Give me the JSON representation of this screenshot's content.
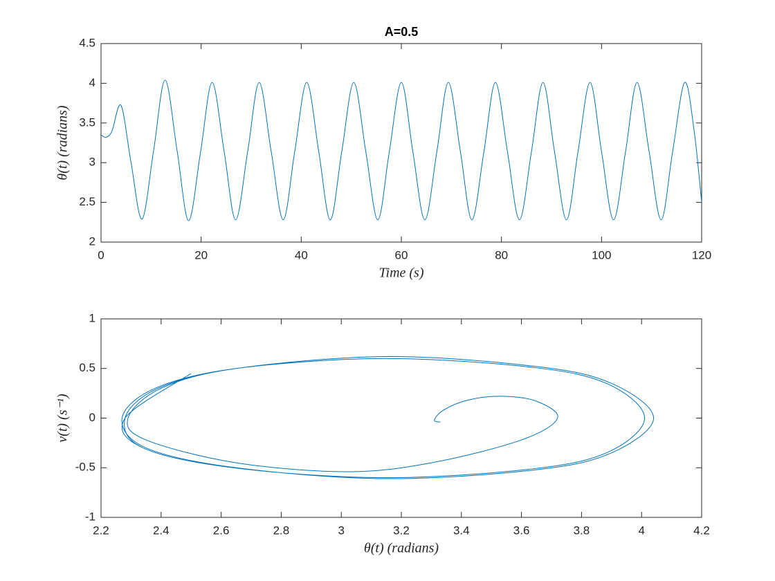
{
  "chart_data": [
    {
      "type": "line",
      "title": "A=0.5",
      "xlabel": "Time (s)",
      "ylabel": "θ(t) (radians)",
      "color": "#0072BD",
      "xlim": [
        0,
        120
      ],
      "xticks": [
        0,
        20,
        40,
        60,
        80,
        100,
        120
      ],
      "ylim": [
        2,
        4.5
      ],
      "yticks": [
        2,
        2.5,
        3,
        3.5,
        4,
        4.5
      ],
      "x": [
        0,
        1,
        2.2,
        4,
        6,
        8.2,
        10.5,
        12.8,
        15.2,
        17.5,
        19.9,
        22.2,
        24.6,
        26.9,
        29.3,
        31.6,
        34,
        36.4,
        38.7,
        41.1,
        43.5,
        45.8,
        48.1,
        50.5,
        52.9,
        55.3,
        57.6,
        60,
        62.3,
        64.7,
        67.1,
        69.4,
        71.8,
        74.1,
        76.5,
        78.8,
        81.2,
        83.6,
        86,
        88.3,
        90.6,
        93,
        95.3,
        97.7,
        100,
        102.4,
        104.8,
        107.1,
        109.5,
        111.9,
        114.2,
        116.6,
        118.5,
        120
      ],
      "values": [
        3.35,
        3.32,
        3.4,
        3.72,
        3.0,
        2.29,
        3.15,
        4.04,
        3.15,
        2.27,
        3.14,
        4.01,
        3.14,
        2.28,
        3.14,
        4.01,
        3.14,
        2.28,
        3.14,
        4.01,
        3.14,
        2.28,
        3.14,
        4.01,
        3.14,
        2.28,
        3.14,
        4.01,
        3.14,
        2.28,
        3.14,
        4.01,
        3.14,
        2.28,
        3.14,
        4.01,
        3.14,
        2.28,
        3.14,
        4.01,
        3.14,
        2.28,
        3.14,
        4.01,
        3.14,
        2.28,
        3.14,
        4.01,
        3.14,
        2.28,
        3.14,
        4.01,
        3.4,
        2.5
      ]
    },
    {
      "type": "line",
      "xlabel": "θ(t) (radians)",
      "ylabel": "v(t) (s⁻¹)",
      "color": "#0072BD",
      "xlim": [
        2.2,
        4.2
      ],
      "xticks": [
        2.2,
        2.4,
        2.6,
        2.8,
        3,
        3.2,
        3.4,
        3.6,
        3.8,
        4,
        4.2
      ],
      "ylim": [
        -1,
        1
      ],
      "yticks": [
        -1,
        -0.5,
        0,
        0.5,
        1
      ],
      "x": [
        3.33,
        3.31,
        3.34,
        3.42,
        3.53,
        3.65,
        3.72,
        3.6,
        3.3,
        3.02,
        2.65,
        2.35,
        2.29,
        2.4,
        2.65,
        3.15,
        3.65,
        3.9,
        4.04,
        3.9,
        3.65,
        3.15,
        2.65,
        2.35,
        2.27,
        2.38,
        2.65,
        3.14,
        3.64,
        3.89,
        4.01,
        3.89,
        3.64,
        3.14,
        2.64,
        2.34,
        2.28,
        2.39,
        2.65,
        3.14,
        3.64,
        3.89,
        4.01,
        3.89,
        3.64,
        3.14,
        2.64,
        2.34,
        2.28,
        2.5
      ],
      "values": [
        -0.04,
        -0.02,
        0.08,
        0.18,
        0.22,
        0.17,
        0,
        -0.22,
        -0.45,
        -0.54,
        -0.45,
        -0.22,
        0,
        0.3,
        0.5,
        0.62,
        0.52,
        0.35,
        0,
        -0.35,
        -0.52,
        -0.61,
        -0.5,
        -0.3,
        0,
        0.3,
        0.5,
        0.6,
        0.51,
        0.34,
        0,
        -0.34,
        -0.51,
        -0.6,
        -0.5,
        -0.3,
        0,
        0.3,
        0.5,
        0.6,
        0.51,
        0.34,
        0,
        -0.34,
        -0.51,
        -0.6,
        -0.5,
        -0.3,
        0,
        0.45
      ]
    }
  ]
}
